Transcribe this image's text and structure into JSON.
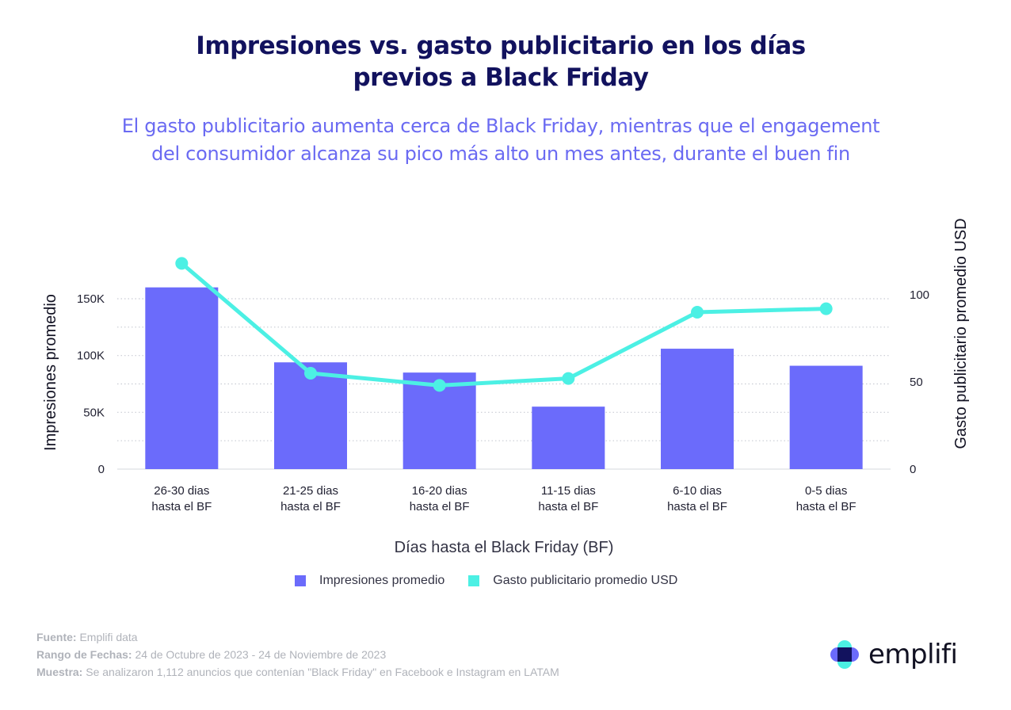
{
  "title": {
    "line1": "Impresiones vs. gasto publicitario en los días",
    "line2": "previos a Black Friday"
  },
  "subtitle": {
    "line1": "El gasto publicitario aumenta cerca de Black Friday, mientras que el engagement",
    "line2": "del consumidor alcanza su pico más alto un mes antes, durante el buen fin"
  },
  "legend": {
    "bars": "Impresiones promedio",
    "line": "Gasto publicitario promedio USD"
  },
  "footer": {
    "source_label": "Fuente:",
    "source_value": "Emplifi data",
    "range_label": "Rango de Fechas:",
    "range_value": "24 de Octubre de 2023 - 24 de Noviembre de 2023",
    "sample_label": "Muestra:",
    "sample_value": "Se analizaron 1,112 anuncios que contenían \"Black Friday\" en Facebook e Instagram en LATAM"
  },
  "logo": {
    "text": "emplifi",
    "icon": "emplifi-cross-logo-icon"
  },
  "colors": {
    "bars": "#6b6bfb",
    "line": "#4cf0e4",
    "title": "#12125e",
    "subtitle": "#6a6af2"
  },
  "chart_data": {
    "type": "bar",
    "categories": [
      [
        "26-30 dias",
        "hasta el BF"
      ],
      [
        "21-25 dias",
        "hasta el BF"
      ],
      [
        "16-20 dias",
        "hasta el BF"
      ],
      [
        "11-15 dias",
        "hasta el BF"
      ],
      [
        "6-10 dias",
        "hasta el BF"
      ],
      [
        "0-5 dias",
        "hasta el BF"
      ]
    ],
    "xlabel": "Días hasta el Black Friday (BF)",
    "ylabel": "Impresiones promedio",
    "y2label": "Gasto publicitario promedio USD",
    "ylim": [
      0,
      150000
    ],
    "y2lim": [
      0,
      100
    ],
    "yticks": [
      0,
      50000,
      100000,
      150000
    ],
    "ytick_labels": [
      "0",
      "50K",
      "100K",
      "150K"
    ],
    "y2ticks": [
      0,
      50,
      100
    ],
    "y2tick_labels": [
      "0",
      "50",
      "100"
    ],
    "grid": true,
    "series": [
      {
        "name": "Impresiones promedio",
        "type": "bar",
        "axis": "left",
        "values": [
          160000,
          94000,
          85000,
          55000,
          106000,
          91000
        ]
      },
      {
        "name": "Gasto publicitario promedio USD",
        "type": "line",
        "axis": "right",
        "values": [
          118,
          55,
          48,
          52,
          90,
          92
        ]
      }
    ]
  }
}
